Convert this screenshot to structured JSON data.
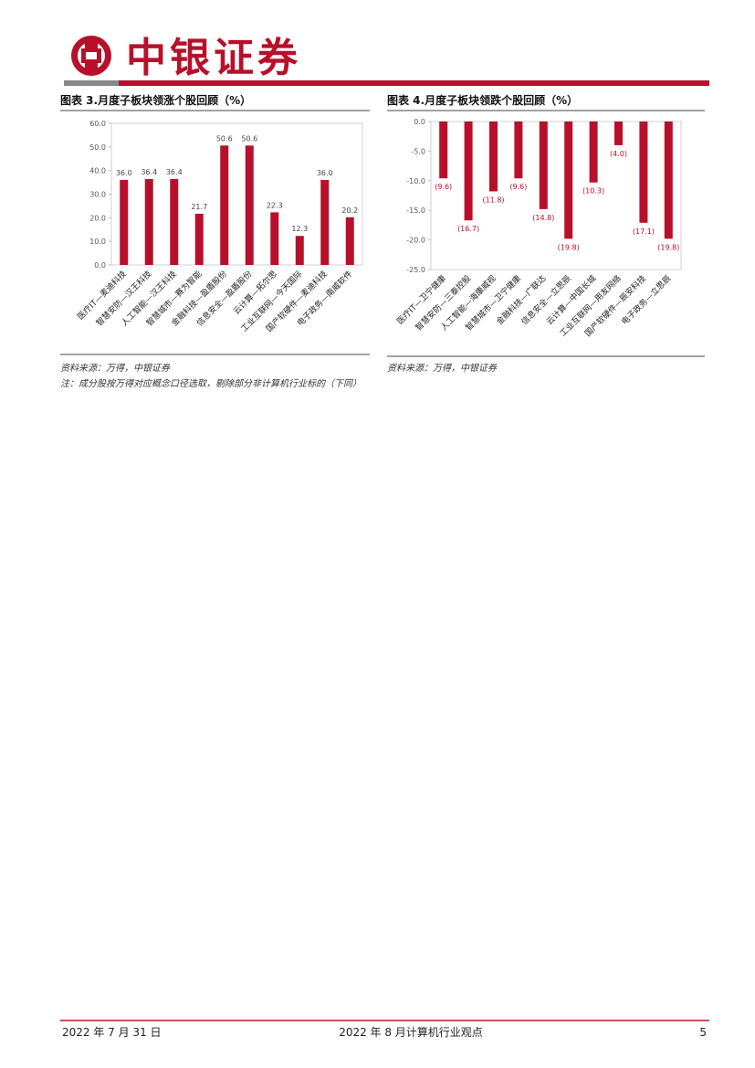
{
  "header": {
    "brand": "中银证券"
  },
  "chart_data": [
    {
      "type": "bar",
      "title": "图表 3.月度子板块领涨个股回顾（%）",
      "categories": [
        "医疗IT—麦迪科技",
        "智慧安防—汉王科技",
        "人工智能—汉王科技",
        "智慧城市—赛为智能",
        "金融科技—盈盾股份",
        "信息安全—盈盾股份",
        "云计算—拓尔思",
        "工业互联网—今天国际",
        "国产软硬件—麦迪科技",
        "电子政务—南威软件"
      ],
      "values": [
        36.0,
        36.4,
        36.4,
        21.7,
        50.6,
        50.6,
        22.3,
        12.3,
        36.0,
        20.2
      ],
      "value_labels": [
        "36.0",
        "36.4",
        "36.4",
        "21.7",
        "50.6",
        "50.6",
        "22.3",
        "12.3",
        "36.0",
        "20.2"
      ],
      "color": "#b8102a",
      "label_color": "#444444",
      "ylim": [
        0,
        60
      ],
      "yticks": [
        {
          "value": 0,
          "label": "0.0"
        },
        {
          "value": 10,
          "label": "10.0"
        },
        {
          "value": 20,
          "label": "20.0"
        },
        {
          "value": 30,
          "label": "30.0"
        },
        {
          "value": 40,
          "label": "40.0"
        },
        {
          "value": 50,
          "label": "50.0"
        },
        {
          "value": 60,
          "label": "60.0"
        }
      ]
    },
    {
      "type": "bar",
      "title": "图表 4.月度子板块领跌个股回顾（%）",
      "categories": [
        "医疗IT—卫宁健康",
        "智慧安防—三泰控股",
        "人工智能—海康威视",
        "智慧城市—卫宁健康",
        "金融科技—广联达",
        "信息安全—立思辰",
        "云计算—中国长城",
        "工业互联网—用友网络",
        "国产软硬件—辰安科技",
        "电子政务—立思辰"
      ],
      "values": [
        -9.6,
        -16.7,
        -11.8,
        -9.6,
        -14.8,
        -19.8,
        -10.3,
        -4.0,
        -17.1,
        -19.8
      ],
      "value_labels": [
        "(9.6)",
        "(16.7)",
        "(11.8)",
        "(9.6)",
        "(14.8)",
        "(19.8)",
        "(10.3)",
        "(4.0)",
        "(17.1)",
        "(19.8)"
      ],
      "color": "#b8102a",
      "label_color": "#b8102a",
      "ylim": [
        -25,
        0
      ],
      "yticks": [
        {
          "value": 0,
          "label": "0.0"
        },
        {
          "value": -5,
          "label": "-5.0"
        },
        {
          "value": -10,
          "label": "-10.0"
        },
        {
          "value": -15,
          "label": "-15.0"
        },
        {
          "value": -20,
          "label": "-20.0"
        },
        {
          "value": -25,
          "label": "-25.0"
        }
      ]
    }
  ],
  "sources": [
    "资料来源：万得，中银证券",
    "资料来源：万得，中银证券"
  ],
  "note": "注：成分股按万得对应概念口径选取，剔除部分非计算机行业标的（下同）",
  "footer": {
    "date": "2022 年 7 月 31 日",
    "title": "2022 年 8 月计算机行业观点",
    "page": "5"
  }
}
